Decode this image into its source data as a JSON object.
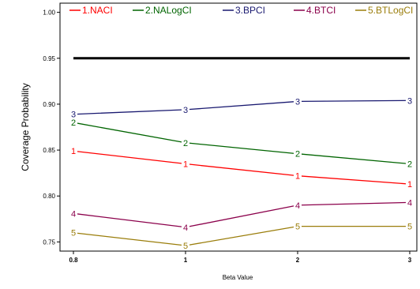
{
  "chart_data": {
    "type": "line",
    "xlabel": "Beta Value",
    "ylabel": "Coverage Probability",
    "categories": [
      "0.8",
      "1",
      "2",
      "3"
    ],
    "ylim": [
      0.74,
      1.01
    ],
    "yticks": [
      "0.75",
      "0.80",
      "0.85",
      "0.90",
      "0.95",
      "1.00"
    ],
    "reference_line": {
      "y": 0.95,
      "color": "#000000"
    },
    "legend_position": "top",
    "series": [
      {
        "name": "1.NACI",
        "marker": "1",
        "color": "#ff0000",
        "values": [
          0.849,
          0.835,
          0.822,
          0.813
        ]
      },
      {
        "name": "2.NALogCI",
        "marker": "2",
        "color": "#006400",
        "values": [
          0.88,
          0.858,
          0.846,
          0.835
        ]
      },
      {
        "name": "3.BPCI",
        "marker": "3",
        "color": "#191970",
        "values": [
          0.889,
          0.894,
          0.903,
          0.904
        ]
      },
      {
        "name": "4.BTCI",
        "marker": "4",
        "color": "#8b004b",
        "values": [
          0.781,
          0.766,
          0.79,
          0.793
        ]
      },
      {
        "name": "5.BTLogCI",
        "marker": "5",
        "color": "#9a7d0a",
        "values": [
          0.76,
          0.746,
          0.767,
          0.767
        ]
      }
    ]
  }
}
